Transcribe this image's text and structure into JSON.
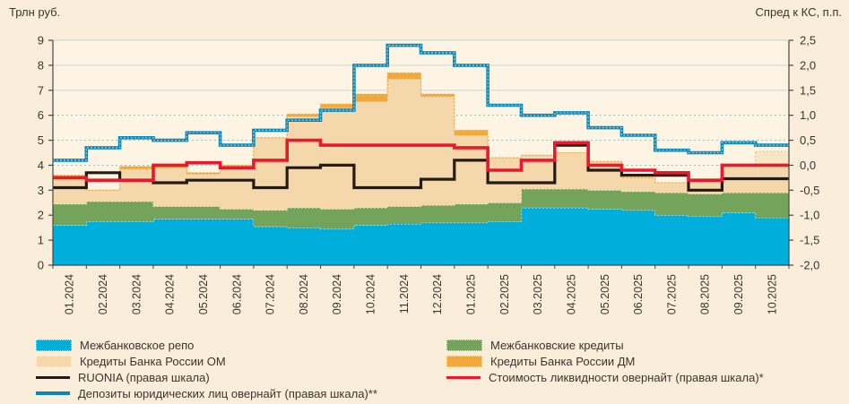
{
  "chart_data": {
    "type": "combo-stacked-area-and-step-lines",
    "left_axis": {
      "label": "Трлн руб.",
      "min": 0,
      "max": 9,
      "step": 1,
      "ticks": [
        "9",
        "8",
        "7",
        "6",
        "5",
        "4",
        "3",
        "2",
        "1",
        "0"
      ]
    },
    "right_axis": {
      "label": "Спред к КС, п.п.",
      "min": -2.0,
      "max": 2.5,
      "step": 0.5,
      "ticks": [
        "2,5",
        "2,0",
        "1,5",
        "1,0",
        "0,5",
        "0,0",
        "-0,5",
        "-1,0",
        "-1,5",
        "-2,0"
      ]
    },
    "categories": [
      "01.2024",
      "02.2024",
      "03.2024",
      "04.2024",
      "05.2024",
      "06.2024",
      "07.2024",
      "08.2024",
      "09.2024",
      "10.2024",
      "11.2024",
      "12.2024",
      "01.2025",
      "02.2025",
      "03.2025",
      "04.2025",
      "05.2025",
      "06.2025",
      "07.2025",
      "08.2025",
      "09.2025",
      "10.2025"
    ],
    "stacked_series": [
      {
        "name": "Межбанковское репо",
        "color": "#00aedc",
        "edge": "#ffffff",
        "values": [
          1.6,
          1.75,
          1.75,
          1.85,
          1.85,
          1.85,
          1.55,
          1.5,
          1.45,
          1.6,
          1.65,
          1.7,
          1.7,
          1.75,
          2.3,
          2.3,
          2.25,
          2.2,
          2.0,
          1.95,
          2.1,
          1.9
        ]
      },
      {
        "name": "Межбанковские кредиты",
        "color": "#74a35c",
        "edge": "#ffffff",
        "values": [
          0.85,
          0.8,
          0.8,
          0.5,
          0.5,
          0.4,
          0.65,
          0.8,
          0.8,
          0.7,
          0.7,
          0.7,
          0.75,
          0.75,
          0.75,
          0.75,
          0.75,
          0.75,
          0.9,
          0.9,
          0.8,
          1.0
        ]
      },
      {
        "name": "Кредиты Банка России ОМ",
        "color": "#f5d7ac",
        "edge": "#dcae72",
        "values": [
          1.0,
          0.45,
          1.3,
          1.55,
          1.3,
          1.75,
          2.9,
          3.65,
          4.05,
          4.25,
          5.1,
          4.35,
          2.75,
          1.8,
          1.35,
          1.45,
          1.15,
          0.55,
          0.4,
          0.55,
          1.1,
          1.0
        ]
      },
      {
        "name": "Кредиты Банка России ДМ",
        "color": "#f2a93b",
        "edge": "#f2a93b",
        "values": [
          0.15,
          0,
          0.1,
          0.1,
          0.05,
          0,
          0,
          0.1,
          0.15,
          0.3,
          0.25,
          0.1,
          0.2,
          0,
          0,
          0,
          0,
          0,
          0,
          0,
          0,
          0
        ]
      }
    ],
    "forecast_block": {
      "category": "10.2025",
      "from": 3.9,
      "to": 4.55,
      "color": "#f8e6c4",
      "edge": "#e0c089"
    },
    "line_series": [
      {
        "name": "RUONIA (правая шкала)",
        "color": "#241a12",
        "width": 3.2,
        "axis": "right",
        "values": [
          -0.45,
          -0.15,
          -0.3,
          -0.35,
          -0.3,
          -0.3,
          -0.45,
          -0.05,
          0.0,
          -0.45,
          -0.45,
          -0.28,
          0.1,
          -0.35,
          -0.35,
          0.4,
          -0.1,
          -0.2,
          -0.2,
          -0.5,
          -0.27,
          -0.27
        ]
      },
      {
        "name": "Стоимость ликвидности овернайт (правая шкала)*",
        "color": "#e8192c",
        "width": 3.6,
        "axis": "right",
        "values": [
          -0.25,
          -0.3,
          -0.3,
          0.0,
          0.05,
          -0.05,
          0.1,
          0.5,
          0.4,
          0.4,
          0.4,
          0.4,
          0.35,
          -0.1,
          0.1,
          0.45,
          0.0,
          -0.1,
          -0.15,
          -0.3,
          0.0,
          0.0
        ]
      },
      {
        "name": "Депозиты юридических лиц овернайт (правая шкала)**",
        "color": "#0b85b5",
        "width": 3.6,
        "axis": "right",
        "overlay": "#8fd8ee",
        "values": [
          0.1,
          0.35,
          0.55,
          0.5,
          0.65,
          0.4,
          0.7,
          0.9,
          1.1,
          2.0,
          2.4,
          2.25,
          2.0,
          1.2,
          1.0,
          1.05,
          0.75,
          0.6,
          0.3,
          0.25,
          0.45,
          0.4
        ]
      }
    ],
    "legend": {
      "left": [
        {
          "label": "Межбанковское репо",
          "type": "area",
          "color": "#00aedc"
        },
        {
          "label": "Кредиты Банка России ОМ",
          "type": "area",
          "color": "#f5d7ac"
        },
        {
          "label": "RUONIA (правая шкала)",
          "type": "line",
          "color": "#241a12"
        },
        {
          "label": "Депозиты юридических лиц овернайт (правая шкала)**",
          "type": "line-dotted",
          "color": "#0b85b5"
        }
      ],
      "right": [
        {
          "label": "Межбанковские кредиты",
          "type": "area",
          "color": "#74a35c"
        },
        {
          "label": "Кредиты Банка России ДМ",
          "type": "area",
          "color": "#f2a93b"
        },
        {
          "label": "Стоимость ликвидности овернайт (правая шкала)*",
          "type": "line",
          "color": "#e8192c"
        }
      ]
    },
    "grid": {
      "plot_bg": "#fdf4e3",
      "line_solid": "#c6d2d2",
      "line_dashed": "#8fb9b9",
      "axis": "#4a4540"
    }
  }
}
